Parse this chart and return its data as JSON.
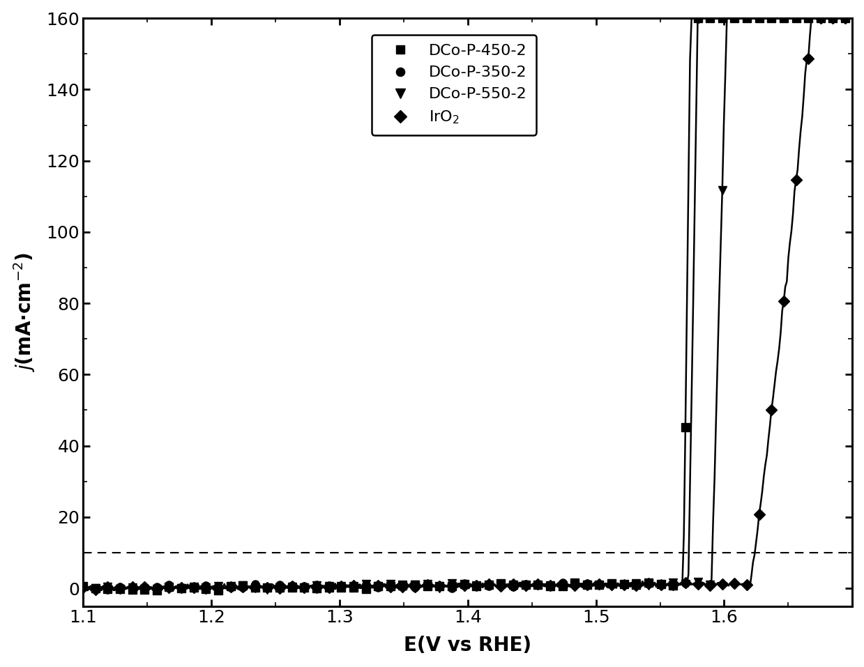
{
  "title": "",
  "xlabel": "E(V vs RHE)",
  "ylabel": "j (mA·cm⁻²)",
  "xlim": [
    1.1,
    1.7
  ],
  "ylim": [
    -5,
    160
  ],
  "yticks": [
    0,
    20,
    40,
    60,
    80,
    100,
    120,
    140,
    160
  ],
  "xticks": [
    1.1,
    1.2,
    1.3,
    1.4,
    1.5,
    1.6
  ],
  "dashed_line_y": 10,
  "background_color": "#ffffff",
  "series": [
    {
      "label": "DCo-P-450-2",
      "marker": "s",
      "ms": 8,
      "onset": 1.568,
      "scale": 2200,
      "exponent": 12.0,
      "every": 8,
      "flat_noise": 0.8
    },
    {
      "label": "DCo-P-350-2",
      "marker": "o",
      "ms": 8,
      "onset": 1.572,
      "scale": 1800,
      "exponent": 11.5,
      "every": 8,
      "flat_noise": 0.8
    },
    {
      "label": "DCo-P-550-2",
      "marker": "v",
      "ms": 9,
      "onset": 1.59,
      "scale": 1200,
      "exponent": 10.5,
      "every": 8,
      "flat_noise": 0.8
    },
    {
      "label": "IrO2",
      "marker": "D",
      "ms": 8,
      "onset": 1.62,
      "scale": 300,
      "exponent": 9.0,
      "every": 8,
      "flat_noise": 0.5
    }
  ]
}
